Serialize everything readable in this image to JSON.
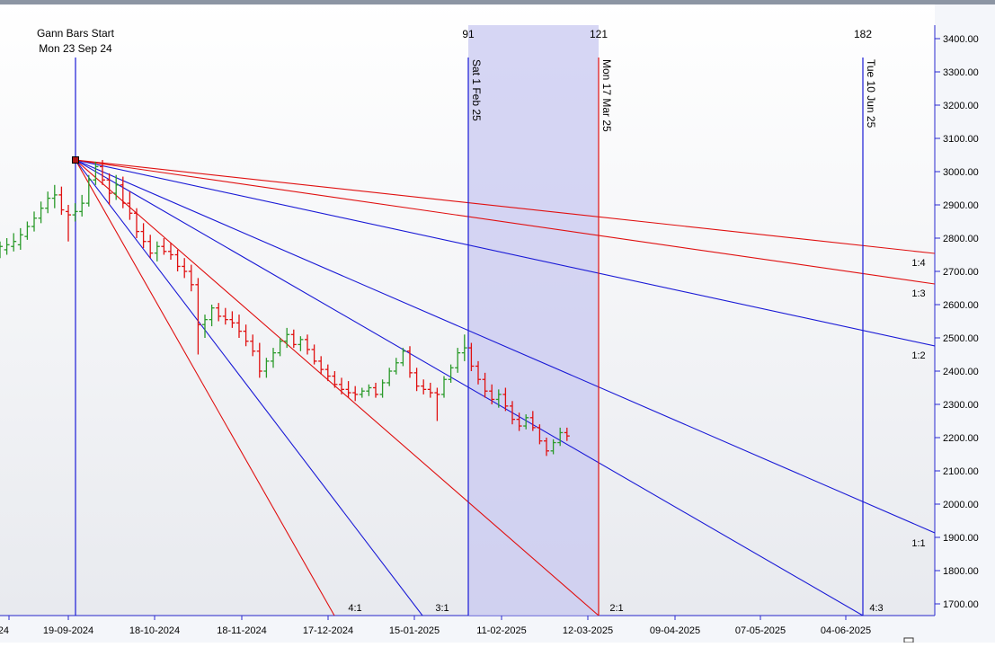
{
  "chart_data": {
    "type": "ohlc-bar",
    "gann_start": {
      "line1": "Gann Bars Start",
      "line2": "Mon 23 Sep 24"
    },
    "x_axis": {
      "tick_labels": [
        "24",
        "19-09-2024",
        "18-10-2024",
        "18-11-2024",
        "17-12-2024",
        "15-01-2025",
        "11-02-2025",
        "12-03-2025",
        "09-04-2025",
        "07-05-2025",
        "04-06-2025"
      ]
    },
    "y_axis": {
      "position": "right",
      "ylim": [
        1650,
        3450
      ],
      "ticks": [
        1700,
        1800,
        1900,
        2000,
        2100,
        2200,
        2300,
        2400,
        2500,
        2600,
        2700,
        2800,
        2900,
        3000,
        3100,
        3200,
        3300,
        3400
      ],
      "tick_labels": [
        "1700.00",
        "1800.00",
        "1900.00",
        "2000.00",
        "2100.00",
        "2200.00",
        "2300.00",
        "2400.00",
        "2500.00",
        "2600.00",
        "2700.00",
        "2800.00",
        "2900.00",
        "3000.00",
        "3100.00",
        "3200.00",
        "3300.00",
        "3400.00"
      ]
    },
    "time_markers": [
      {
        "count": "91",
        "date_label": "Sat 1 Feb 25",
        "color": "#1a1ad6"
      },
      {
        "count": "121",
        "date_label": "Mon 17 Mar 25",
        "color": "#e01010"
      },
      {
        "count": "182",
        "date_label": "Tue 10 Jun 25",
        "color": "#1a1ad6"
      }
    ],
    "highlight_range": {
      "from": "Sat 1 Feb 25",
      "to": "Mon 17 Mar 25",
      "color": "#c8c8f0"
    },
    "gann_fan": {
      "origin_price": 3035,
      "lines": [
        {
          "ratio": "4:1",
          "color": "#e01010"
        },
        {
          "ratio": "3:1",
          "color": "#1a1ad6"
        },
        {
          "ratio": "2:1",
          "color": "#e01010"
        },
        {
          "ratio": "4:3",
          "color": "#1a1ad6"
        },
        {
          "ratio": "1:1",
          "color": "#1a1ad6"
        },
        {
          "ratio": "1:2",
          "color": "#1a1ad6"
        },
        {
          "ratio": "1:3",
          "color": "#e01010"
        },
        {
          "ratio": "1:4",
          "color": "#e01010"
        }
      ]
    },
    "series": [
      {
        "up_color": "#2a9a2a",
        "down_color": "#e01010",
        "points": [
          [
            2745,
            2790,
            2740,
            2775
          ],
          [
            2765,
            2800,
            2750,
            2780
          ],
          [
            2775,
            2815,
            2760,
            2790
          ],
          [
            2780,
            2830,
            2765,
            2810
          ],
          [
            2805,
            2850,
            2795,
            2835
          ],
          [
            2835,
            2880,
            2820,
            2860
          ],
          [
            2860,
            2910,
            2845,
            2890
          ],
          [
            2890,
            2940,
            2875,
            2920
          ],
          [
            2920,
            2960,
            2890,
            2930
          ],
          [
            2930,
            2955,
            2870,
            2885
          ],
          [
            2880,
            2900,
            2790,
            2870
          ],
          [
            2870,
            2905,
            2850,
            2880
          ],
          [
            2880,
            2930,
            2865,
            2905
          ],
          [
            2905,
            2990,
            2895,
            2975
          ],
          [
            2975,
            3030,
            2960,
            3015
          ],
          [
            3015,
            3035,
            2960,
            2975
          ],
          [
            2975,
            2995,
            2900,
            2935
          ],
          [
            2935,
            2990,
            2915,
            2960
          ],
          [
            2960,
            2985,
            2890,
            2905
          ],
          [
            2905,
            2940,
            2855,
            2875
          ],
          [
            2875,
            2890,
            2800,
            2820
          ],
          [
            2820,
            2845,
            2770,
            2790
          ],
          [
            2790,
            2810,
            2740,
            2755
          ],
          [
            2755,
            2790,
            2730,
            2775
          ],
          [
            2775,
            2800,
            2750,
            2760
          ],
          [
            2760,
            2785,
            2735,
            2750
          ],
          [
            2750,
            2765,
            2700,
            2715
          ],
          [
            2715,
            2740,
            2680,
            2700
          ],
          [
            2700,
            2720,
            2640,
            2660
          ],
          [
            2660,
            2680,
            2450,
            2540
          ],
          [
            2540,
            2570,
            2500,
            2555
          ],
          [
            2555,
            2600,
            2535,
            2590
          ],
          [
            2590,
            2605,
            2550,
            2565
          ],
          [
            2565,
            2590,
            2540,
            2555
          ],
          [
            2555,
            2580,
            2530,
            2545
          ],
          [
            2545,
            2570,
            2500,
            2520
          ],
          [
            2520,
            2540,
            2475,
            2490
          ],
          [
            2490,
            2510,
            2445,
            2460
          ],
          [
            2460,
            2485,
            2380,
            2400
          ],
          [
            2400,
            2440,
            2380,
            2430
          ],
          [
            2430,
            2470,
            2410,
            2455
          ],
          [
            2455,
            2500,
            2445,
            2490
          ],
          [
            2490,
            2530,
            2470,
            2510
          ],
          [
            2510,
            2525,
            2470,
            2480
          ],
          [
            2480,
            2505,
            2460,
            2495
          ],
          [
            2495,
            2510,
            2450,
            2465
          ],
          [
            2465,
            2480,
            2420,
            2430
          ],
          [
            2430,
            2445,
            2390,
            2405
          ],
          [
            2405,
            2420,
            2370,
            2385
          ],
          [
            2385,
            2400,
            2350,
            2360
          ],
          [
            2360,
            2380,
            2330,
            2345
          ],
          [
            2345,
            2370,
            2320,
            2335
          ],
          [
            2335,
            2355,
            2310,
            2330
          ],
          [
            2330,
            2350,
            2320,
            2340
          ],
          [
            2340,
            2360,
            2325,
            2350
          ],
          [
            2350,
            2365,
            2320,
            2330
          ],
          [
            2330,
            2375,
            2320,
            2365
          ],
          [
            2365,
            2410,
            2355,
            2400
          ],
          [
            2400,
            2440,
            2390,
            2425
          ],
          [
            2425,
            2470,
            2415,
            2460
          ],
          [
            2460,
            2475,
            2380,
            2395
          ],
          [
            2395,
            2410,
            2340,
            2355
          ],
          [
            2355,
            2375,
            2330,
            2345
          ],
          [
            2345,
            2365,
            2320,
            2335
          ],
          [
            2335,
            2350,
            2250,
            2330
          ],
          [
            2330,
            2385,
            2320,
            2375
          ],
          [
            2375,
            2420,
            2365,
            2410
          ],
          [
            2410,
            2470,
            2395,
            2455
          ],
          [
            2455,
            2510,
            2430,
            2470
          ],
          [
            2470,
            2485,
            2400,
            2415
          ],
          [
            2415,
            2430,
            2360,
            2375
          ],
          [
            2375,
            2395,
            2320,
            2340
          ],
          [
            2340,
            2360,
            2300,
            2315
          ],
          [
            2315,
            2345,
            2290,
            2330
          ],
          [
            2330,
            2350,
            2280,
            2295
          ],
          [
            2295,
            2310,
            2240,
            2255
          ],
          [
            2255,
            2275,
            2220,
            2235
          ],
          [
            2235,
            2270,
            2225,
            2260
          ],
          [
            2260,
            2280,
            2220,
            2230
          ],
          [
            2230,
            2240,
            2180,
            2190
          ],
          [
            2190,
            2200,
            2145,
            2160
          ],
          [
            2160,
            2195,
            2150,
            2185
          ],
          [
            2185,
            2230,
            2175,
            2215
          ],
          [
            2215,
            2230,
            2190,
            2205
          ]
        ]
      }
    ]
  }
}
